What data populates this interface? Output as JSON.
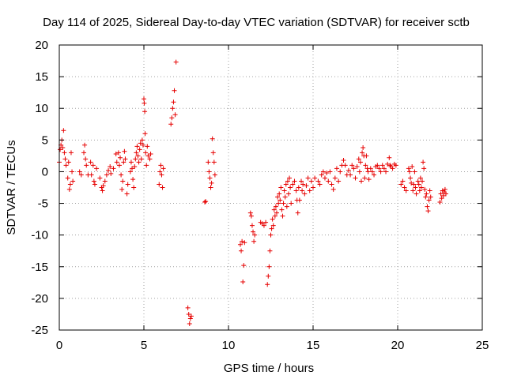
{
  "chart_data": {
    "type": "scatter",
    "title": "Day 114 of 2025, Sidereal Day-to-day VTEC variation (SDTVAR) for receiver sctb",
    "xlabel": "GPS time / hours",
    "ylabel": "SDTVAR / TECUs",
    "xlim": [
      0,
      25
    ],
    "ylim": [
      -25,
      20
    ],
    "xticks": [
      0,
      5,
      10,
      15,
      20,
      25
    ],
    "yticks": [
      20,
      15,
      10,
      5,
      0,
      -5,
      -10,
      -15,
      -20,
      -25
    ],
    "xtick_labels": [
      "0",
      "5",
      "10",
      "15",
      "20",
      "25"
    ],
    "ytick_labels": [
      "20",
      "15",
      "10",
      "5",
      "0",
      "-5",
      "-10",
      "-15",
      "-20",
      "-25"
    ],
    "grid": true,
    "marker": "+",
    "color": "#e60000",
    "series": [
      {
        "name": "sctb",
        "points": [
          [
            0.0,
            1.5
          ],
          [
            0.05,
            3.5
          ],
          [
            0.1,
            4.2
          ],
          [
            0.15,
            5.0
          ],
          [
            0.2,
            3.8
          ],
          [
            0.25,
            6.5
          ],
          [
            0.3,
            3.0
          ],
          [
            0.35,
            2.0
          ],
          [
            0.4,
            1.0
          ],
          [
            0.5,
            -1.0
          ],
          [
            0.55,
            1.5
          ],
          [
            0.6,
            -2.8
          ],
          [
            0.65,
            -2.0
          ],
          [
            0.7,
            3.0
          ],
          [
            0.75,
            0.0
          ],
          [
            0.8,
            -1.5
          ],
          [
            1.2,
            0.0
          ],
          [
            1.3,
            -0.5
          ],
          [
            1.45,
            3.0
          ],
          [
            1.5,
            4.2
          ],
          [
            1.55,
            2.0
          ],
          [
            1.6,
            1.0
          ],
          [
            1.7,
            -0.5
          ],
          [
            1.85,
            1.5
          ],
          [
            1.9,
            -0.5
          ],
          [
            2.0,
            1.0
          ],
          [
            2.05,
            -1.5
          ],
          [
            2.1,
            -2.0
          ],
          [
            2.2,
            0.5
          ],
          [
            2.4,
            -1.0
          ],
          [
            2.5,
            -2.5
          ],
          [
            2.55,
            -3.0
          ],
          [
            2.6,
            -2.2
          ],
          [
            2.7,
            -1.5
          ],
          [
            2.8,
            -0.5
          ],
          [
            2.9,
            0.2
          ],
          [
            3.0,
            0.8
          ],
          [
            3.05,
            -0.3
          ],
          [
            3.2,
            0.5
          ],
          [
            3.35,
            2.8
          ],
          [
            3.4,
            1.5
          ],
          [
            3.5,
            3.0
          ],
          [
            3.55,
            1.0
          ],
          [
            3.6,
            2.2
          ],
          [
            3.65,
            -0.5
          ],
          [
            3.7,
            -2.8
          ],
          [
            3.75,
            -1.5
          ],
          [
            3.8,
            1.5
          ],
          [
            3.85,
            3.2
          ],
          [
            3.9,
            2.0
          ],
          [
            4.0,
            -3.5
          ],
          [
            4.05,
            -2.0
          ],
          [
            4.2,
            0.0
          ],
          [
            4.25,
            1.5
          ],
          [
            4.3,
            0.5
          ],
          [
            4.35,
            -1.2
          ],
          [
            4.4,
            -2.5
          ],
          [
            4.45,
            0.8
          ],
          [
            4.5,
            2.0
          ],
          [
            4.55,
            3.0
          ],
          [
            4.6,
            4.0
          ],
          [
            4.65,
            2.5
          ],
          [
            4.7,
            1.5
          ],
          [
            4.75,
            3.5
          ],
          [
            4.8,
            4.5
          ],
          [
            4.85,
            2.0
          ],
          [
            4.9,
            5.0
          ],
          [
            4.95,
            4.2
          ],
          [
            5.0,
            11.5
          ],
          [
            5.02,
            10.8
          ],
          [
            5.05,
            9.5
          ],
          [
            5.07,
            6.0
          ],
          [
            5.1,
            3.0
          ],
          [
            5.15,
            1.0
          ],
          [
            5.2,
            4.0
          ],
          [
            5.25,
            2.5
          ],
          [
            5.35,
            2.0
          ],
          [
            5.4,
            2.8
          ],
          [
            5.9,
            -2.0
          ],
          [
            5.95,
            0.0
          ],
          [
            6.0,
            1.0
          ],
          [
            6.05,
            -0.5
          ],
          [
            6.1,
            -2.5
          ],
          [
            6.15,
            0.5
          ],
          [
            6.6,
            7.5
          ],
          [
            6.65,
            8.5
          ],
          [
            6.7,
            10.0
          ],
          [
            6.75,
            11.0
          ],
          [
            6.8,
            12.8
          ],
          [
            6.85,
            9.0
          ],
          [
            6.9,
            17.3
          ],
          [
            7.6,
            -21.5
          ],
          [
            7.65,
            -22.5
          ],
          [
            7.7,
            -24.0
          ],
          [
            7.75,
            -23.2
          ],
          [
            7.8,
            -22.8
          ],
          [
            8.6,
            -4.8
          ],
          [
            8.65,
            -4.7
          ],
          [
            8.8,
            1.5
          ],
          [
            8.85,
            0.0
          ],
          [
            8.9,
            -1.0
          ],
          [
            8.95,
            -2.5
          ],
          [
            9.0,
            -1.8
          ],
          [
            9.05,
            5.2
          ],
          [
            9.1,
            3.0
          ],
          [
            9.15,
            1.5
          ],
          [
            9.2,
            -0.5
          ],
          [
            10.7,
            -11.5
          ],
          [
            10.75,
            -12.5
          ],
          [
            10.8,
            -11.0
          ],
          [
            10.85,
            -17.4
          ],
          [
            10.9,
            -14.8
          ],
          [
            10.95,
            -11.2
          ],
          [
            11.3,
            -6.5
          ],
          [
            11.35,
            -7.0
          ],
          [
            11.4,
            -8.5
          ],
          [
            11.45,
            -9.5
          ],
          [
            11.5,
            -11.0
          ],
          [
            11.55,
            -10.0
          ],
          [
            11.9,
            -8.0
          ],
          [
            12.0,
            -8.2
          ],
          [
            12.1,
            -8.5
          ],
          [
            12.2,
            -8.0
          ],
          [
            12.3,
            -17.8
          ],
          [
            12.35,
            -16.5
          ],
          [
            12.4,
            -15.0
          ],
          [
            12.45,
            -12.5
          ],
          [
            12.5,
            -10.0
          ],
          [
            12.55,
            -9.0
          ],
          [
            12.6,
            -7.5
          ],
          [
            12.65,
            -8.5
          ],
          [
            12.7,
            -6.0
          ],
          [
            12.75,
            -7.0
          ],
          [
            12.8,
            -5.5
          ],
          [
            12.85,
            -6.5
          ],
          [
            12.9,
            -4.0
          ],
          [
            12.95,
            -5.0
          ],
          [
            13.0,
            -3.5
          ],
          [
            13.05,
            -4.5
          ],
          [
            13.1,
            -2.5
          ],
          [
            13.15,
            -6.0
          ],
          [
            13.2,
            -7.0
          ],
          [
            13.25,
            -5.0
          ],
          [
            13.3,
            -3.0
          ],
          [
            13.35,
            -4.0
          ],
          [
            13.4,
            -2.0
          ],
          [
            13.45,
            -5.5
          ],
          [
            13.5,
            -1.5
          ],
          [
            13.55,
            -3.5
          ],
          [
            13.6,
            -1.0
          ],
          [
            13.65,
            -2.5
          ],
          [
            13.7,
            -5.0
          ],
          [
            13.8,
            -2.0
          ],
          [
            13.9,
            -1.5
          ],
          [
            14.0,
            -3.0
          ],
          [
            14.05,
            -4.5
          ],
          [
            14.1,
            -6.5
          ],
          [
            14.15,
            -2.5
          ],
          [
            14.2,
            -4.5
          ],
          [
            14.3,
            -1.5
          ],
          [
            14.35,
            -3.0
          ],
          [
            14.4,
            -2.0
          ],
          [
            14.5,
            -3.5
          ],
          [
            14.6,
            -2.2
          ],
          [
            14.7,
            -1.0
          ],
          [
            14.8,
            -3.0
          ],
          [
            14.9,
            -1.5
          ],
          [
            15.0,
            -2.5
          ],
          [
            15.1,
            -1.0
          ],
          [
            15.3,
            -1.5
          ],
          [
            15.4,
            -2.0
          ],
          [
            15.5,
            -0.5
          ],
          [
            15.6,
            0.0
          ],
          [
            15.7,
            -1.0
          ],
          [
            15.8,
            -0.2
          ],
          [
            15.9,
            -1.5
          ],
          [
            16.0,
            0.0
          ],
          [
            16.1,
            -2.0
          ],
          [
            16.2,
            -2.8
          ],
          [
            16.3,
            -1.0
          ],
          [
            16.4,
            0.5
          ],
          [
            16.5,
            -1.5
          ],
          [
            16.6,
            0.0
          ],
          [
            16.7,
            1.0
          ],
          [
            16.8,
            1.8
          ],
          [
            16.9,
            1.0
          ],
          [
            17.0,
            -0.5
          ],
          [
            17.1,
            0.2
          ],
          [
            17.2,
            -0.5
          ],
          [
            17.3,
            1.0
          ],
          [
            17.4,
            0.5
          ],
          [
            17.5,
            -1.0
          ],
          [
            17.6,
            0.8
          ],
          [
            17.7,
            2.0
          ],
          [
            17.75,
            0.0
          ],
          [
            17.8,
            1.5
          ],
          [
            17.85,
            -1.5
          ],
          [
            17.9,
            3.0
          ],
          [
            17.95,
            3.8
          ],
          [
            18.0,
            2.5
          ],
          [
            18.05,
            -1.0
          ],
          [
            18.1,
            1.0
          ],
          [
            18.15,
            2.5
          ],
          [
            18.2,
            0.5
          ],
          [
            18.25,
            0.0
          ],
          [
            18.3,
            -1.2
          ],
          [
            18.4,
            0.5
          ],
          [
            18.5,
            0.0
          ],
          [
            18.6,
            -0.5
          ],
          [
            18.7,
            0.8
          ],
          [
            18.8,
            1.0
          ],
          [
            18.9,
            0.5
          ],
          [
            19.0,
            0.0
          ],
          [
            19.1,
            1.0
          ],
          [
            19.2,
            0.5
          ],
          [
            19.3,
            0.0
          ],
          [
            19.4,
            1.2
          ],
          [
            19.5,
            2.2
          ],
          [
            19.55,
            1.0
          ],
          [
            19.6,
            0.8
          ],
          [
            19.7,
            0.5
          ],
          [
            19.8,
            1.2
          ],
          [
            19.9,
            1.0
          ],
          [
            20.2,
            -2.0
          ],
          [
            20.3,
            -1.5
          ],
          [
            20.4,
            -2.5
          ],
          [
            20.5,
            -3.0
          ],
          [
            20.65,
            0.5
          ],
          [
            20.7,
            0.0
          ],
          [
            20.75,
            -1.0
          ],
          [
            20.8,
            -1.8
          ],
          [
            20.85,
            0.8
          ],
          [
            20.9,
            -3.0
          ],
          [
            20.95,
            -2.0
          ],
          [
            21.0,
            0.0
          ],
          [
            21.05,
            -2.5
          ],
          [
            21.1,
            -3.5
          ],
          [
            21.2,
            -1.5
          ],
          [
            21.25,
            -2.0
          ],
          [
            21.3,
            -3.0
          ],
          [
            21.35,
            -1.0
          ],
          [
            21.4,
            -2.5
          ],
          [
            21.45,
            -1.5
          ],
          [
            21.5,
            1.5
          ],
          [
            21.55,
            0.5
          ],
          [
            21.6,
            -2.8
          ],
          [
            21.65,
            -4.0
          ],
          [
            21.7,
            -3.5
          ],
          [
            21.75,
            -5.5
          ],
          [
            21.8,
            -6.2
          ],
          [
            21.85,
            -4.5
          ],
          [
            21.9,
            -3.0
          ],
          [
            21.95,
            -4.0
          ],
          [
            22.5,
            -4.8
          ],
          [
            22.55,
            -3.5
          ],
          [
            22.6,
            -4.2
          ],
          [
            22.65,
            -3.0
          ],
          [
            22.7,
            -3.8
          ],
          [
            22.75,
            -3.2
          ],
          [
            22.8,
            -2.8
          ],
          [
            22.85,
            -3.5
          ]
        ]
      }
    ]
  }
}
